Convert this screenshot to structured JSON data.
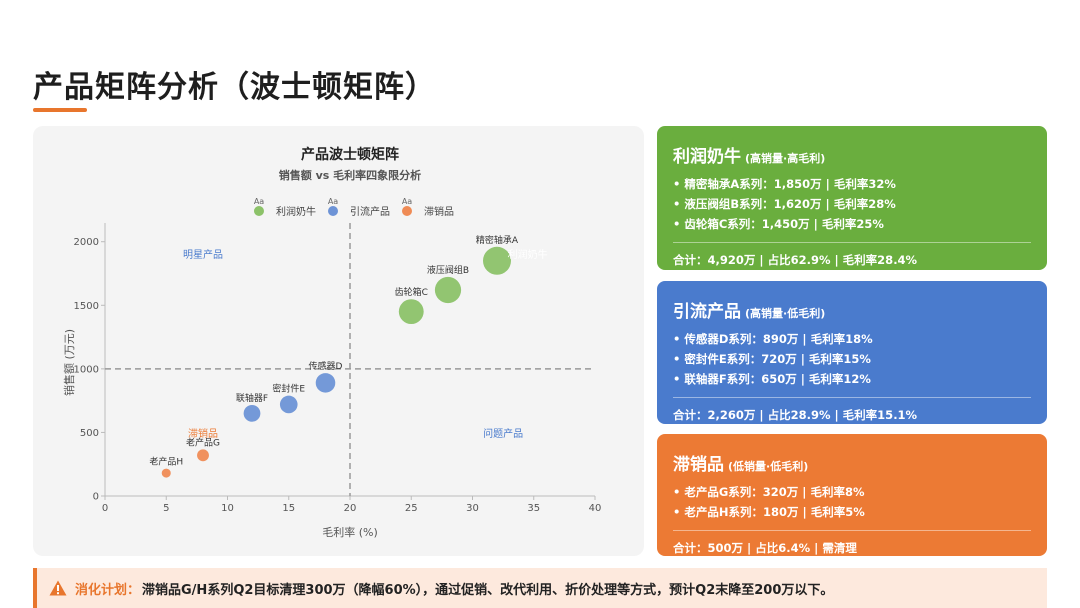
{
  "page": {
    "title": "产品矩阵分析（波士顿矩阵）"
  },
  "chart_data": {
    "type": "scatter",
    "title": "产品波士顿矩阵",
    "subtitle": "销售额 vs 毛利率四象限分析",
    "xlabel": "毛利率 (%)",
    "ylabel": "销售额 (万元)",
    "xlim": [
      0,
      40
    ],
    "ylim": [
      0,
      2100
    ],
    "x_ticks": [
      0,
      5,
      10,
      15,
      20,
      25,
      30,
      35,
      40
    ],
    "y_ticks": [
      0,
      500,
      1000,
      1500,
      2000
    ],
    "grid": false,
    "legend_position": "top",
    "legend_marker_text": "Aa",
    "divider_x": 20,
    "divider_y": 1000,
    "quadrant_labels": [
      {
        "text": "明星产品",
        "x": 8,
        "y": 1900,
        "color": "#4a7bcd"
      },
      {
        "text": "利润奶牛",
        "x": 34.5,
        "y": 1900,
        "color": "#ffffff"
      },
      {
        "text": "滞销品",
        "x": 8,
        "y": 490,
        "color": "#ec7a34"
      },
      {
        "text": "问题产品",
        "x": 32.5,
        "y": 490,
        "color": "#4a7bcd"
      }
    ],
    "series": [
      {
        "name": "利润奶牛",
        "color": "#8cc269",
        "points": [
          {
            "label": "精密轴承A",
            "x": 32,
            "y": 1850,
            "size": 1850
          },
          {
            "label": "液压阀组B",
            "x": 28,
            "y": 1620,
            "size": 1620
          },
          {
            "label": "齿轮箱C",
            "x": 25,
            "y": 1450,
            "size": 1450
          }
        ]
      },
      {
        "name": "引流产品",
        "color": "#6d93d6",
        "points": [
          {
            "label": "传感器D",
            "x": 18,
            "y": 890,
            "size": 890
          },
          {
            "label": "密封件E",
            "x": 15,
            "y": 720,
            "size": 720
          },
          {
            "label": "联轴器F",
            "x": 12,
            "y": 650,
            "size": 650
          }
        ]
      },
      {
        "name": "滞销品",
        "color": "#ef8b55",
        "points": [
          {
            "label": "老产品G",
            "x": 8,
            "y": 320,
            "size": 320
          },
          {
            "label": "老产品H",
            "x": 5,
            "y": 180,
            "size": 180
          }
        ]
      }
    ]
  },
  "cards": {
    "cash": {
      "name": "利润奶牛",
      "sub": "(高销量·高毛利)",
      "items": [
        "• 精密轴承A系列：1,850万 | 毛利率32%",
        "• 液压阀组B系列：1,620万 | 毛利率28%",
        "• 齿轮箱C系列：1,450万 | 毛利率25%"
      ],
      "total": "合计：4,920万 | 占比62.9% | 毛利率28.4%"
    },
    "traffic": {
      "name": "引流产品",
      "sub": "(高销量·低毛利)",
      "items": [
        "• 传感器D系列：890万 | 毛利率18%",
        "• 密封件E系列：720万 | 毛利率15%",
        "• 联轴器F系列：650万 | 毛利率12%"
      ],
      "total": "合计：2,260万 | 占比28.9% | 毛利率15.1%"
    },
    "slow": {
      "name": "滞销品",
      "sub": "(低销量·低毛利)",
      "items": [
        "• 老产品G系列：320万 | 毛利率8%",
        "• 老产品H系列：180万 | 毛利率5%"
      ],
      "total": "合计：500万 | 占比6.4% | 需清理"
    }
  },
  "plan": {
    "label": "消化计划：",
    "text": "滞销品G/H系列Q2目标清理300万（降幅60%），通过促销、改代利用、折价处理等方式，预计Q2末降至200万以下。",
    "icon": "warning-icon"
  },
  "colors": {
    "accent": "#e8762d",
    "cash": "#6aae3e",
    "traffic": "#4a7bcd",
    "slow": "#ec7a34"
  }
}
